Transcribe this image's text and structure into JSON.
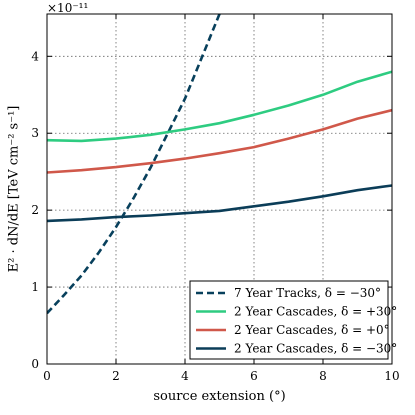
{
  "chart_data": {
    "type": "line",
    "xlabel": "source extension (°)",
    "ylabel": "E² · dN/dE [TeV cm⁻² s⁻¹]",
    "y_multiplier": "×10⁻¹¹",
    "xlim": [
      0,
      10
    ],
    "ylim": [
      0,
      4.55
    ],
    "xticks": [
      "0",
      "2",
      "4",
      "6",
      "8",
      "10"
    ],
    "yticks": [
      "0",
      "1",
      "2",
      "3",
      "4"
    ],
    "grid": true,
    "legend_position": "bottom-right",
    "series": [
      {
        "name": "7 Year Tracks, δ = −30°",
        "color": "#08405c",
        "style": "dashed",
        "x": [
          0,
          0.5,
          1,
          1.5,
          2,
          2.5,
          3,
          3.5,
          4,
          4.5,
          5
        ],
        "y": [
          0.66,
          0.9,
          1.15,
          1.45,
          1.78,
          2.15,
          2.55,
          3.0,
          3.45,
          4.0,
          4.55
        ]
      },
      {
        "name": "2 Year Cascades, δ = +30°",
        "color": "#2ecc81",
        "style": "solid",
        "x": [
          0,
          1,
          2,
          3,
          4,
          5,
          6,
          7,
          8,
          9,
          10
        ],
        "y": [
          2.91,
          2.9,
          2.93,
          2.98,
          3.05,
          3.13,
          3.24,
          3.36,
          3.5,
          3.67,
          3.8
        ]
      },
      {
        "name": "2 Year Cascades, δ = +0°",
        "color": "#d0584a",
        "style": "solid",
        "x": [
          0,
          1,
          2,
          3,
          4,
          5,
          6,
          7,
          8,
          9,
          10
        ],
        "y": [
          2.49,
          2.52,
          2.56,
          2.61,
          2.67,
          2.74,
          2.82,
          2.93,
          3.05,
          3.19,
          3.3
        ]
      },
      {
        "name": "2 Year Cascades, δ = −30°",
        "color": "#0b3d58",
        "style": "solid",
        "x": [
          0,
          1,
          2,
          3,
          4,
          5,
          6,
          7,
          8,
          9,
          10
        ],
        "y": [
          1.86,
          1.88,
          1.91,
          1.93,
          1.96,
          1.99,
          2.05,
          2.11,
          2.18,
          2.26,
          2.32
        ]
      }
    ]
  }
}
